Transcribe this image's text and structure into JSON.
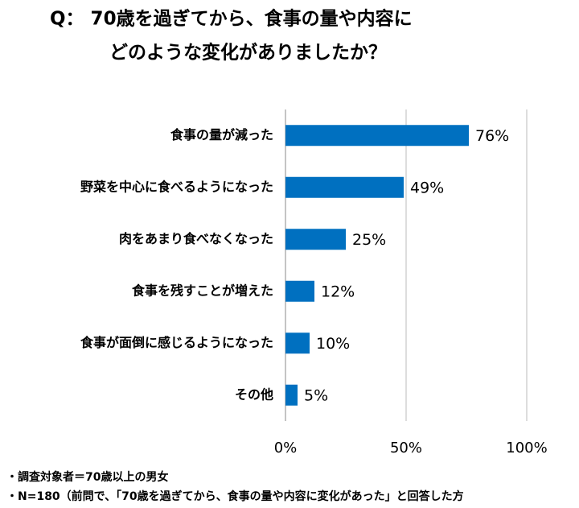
{
  "chart_data": {
    "type": "bar",
    "orientation": "horizontal",
    "title": [
      "Q： 70歳を過ぎてから、食事の量や内容に",
      "どのような変化がありましたか？"
    ],
    "categories": [
      "食事の量が減った",
      "野菜を中心に食べるようになった",
      "肉をあまり食べなくなった",
      "食事を残すことが増えた",
      "食事が面倒に感じるようになった",
      "その他"
    ],
    "values": [
      76,
      49,
      25,
      12,
      10,
      5
    ],
    "value_labels": [
      "76%",
      "49%",
      "25%",
      "12%",
      "10%",
      "5%"
    ],
    "color": "#0070c0",
    "xlim": [
      0,
      100
    ],
    "xticks": [
      {
        "value": 0,
        "label": "0%"
      },
      {
        "value": 50,
        "label": "50%"
      },
      {
        "value": 100,
        "label": "100%"
      }
    ],
    "grid": true,
    "footnotes": [
      "・調査対象者＝70歳以上の男女",
      "・N=180（前問で、「70歳を過ぎてから、食事の量や内容に変化があった」と回答した方"
    ]
  }
}
